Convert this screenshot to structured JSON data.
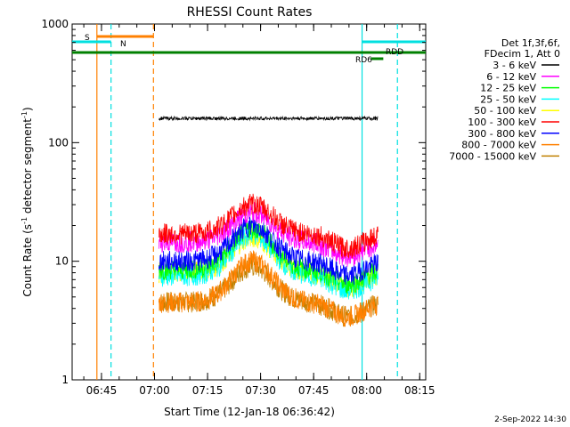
{
  "chart_data": {
    "type": "line",
    "title": "RHESSI Count Rates",
    "xlabel": "Start Time (12-Jan-18 06:36:42)",
    "ylabel_main": "Count Rate (s",
    "ylabel_sup1": "-1",
    "ylabel_mid": " detector segment",
    "ylabel_sup2": "-1",
    "ylabel_end": ")",
    "y_scale": "log",
    "ylim": [
      1,
      1000
    ],
    "xlim_minutes": [
      0,
      100
    ],
    "x_ticks": [
      {
        "label": "06:45",
        "minute": 8.3
      },
      {
        "label": "07:00",
        "minute": 23.3
      },
      {
        "label": "07:15",
        "minute": 38.3
      },
      {
        "label": "07:30",
        "minute": 53.3
      },
      {
        "label": "07:45",
        "minute": 68.3
      },
      {
        "label": "08:00",
        "minute": 83.3
      },
      {
        "label": "08:15",
        "minute": 98.3
      }
    ],
    "y_ticks": [
      {
        "label": "1",
        "value": 1
      },
      {
        "label": "10",
        "value": 10
      },
      {
        "label": "100",
        "value": 100
      },
      {
        "label": "1000",
        "value": 1000
      }
    ],
    "legend_header": [
      "Det 1f,3f,6f,",
      "FDecim 1, Att 0"
    ],
    "series": [
      {
        "name": "3 - 6 keV",
        "color": "#000000",
        "base": 160,
        "bump": 0.0
      },
      {
        "name": "6 - 12 keV",
        "color": "#ff00ff",
        "base": 14.5,
        "bump": 0.25
      },
      {
        "name": "12 - 25 keV",
        "color": "#00ff00",
        "base": 8.5,
        "bump": 0.35
      },
      {
        "name": "25 - 50 keV",
        "color": "#00ffff",
        "base": 7.5,
        "bump": 0.35
      },
      {
        "name": "50 - 100 keV",
        "color": "#ffff00",
        "base": 8.0,
        "bump": 0.3
      },
      {
        "name": "100 - 300 keV",
        "color": "#ff0000",
        "base": 17,
        "bump": 0.25
      },
      {
        "name": "300 - 800 keV",
        "color": "#0000ff",
        "base": 10,
        "bump": 0.3
      },
      {
        "name": "800 - 7000 keV",
        "color": "#ff8000",
        "base": 4.5,
        "bump": 0.35
      },
      {
        "name": "7000 - 15000 keV",
        "color": "#c08000",
        "base": 4.5,
        "bump": 0.3
      }
    ],
    "data_start_minute": 24.5,
    "data_end_minute": 86.5,
    "markers": {
      "S_label": "S",
      "N_label": "N",
      "RD6_label": "RD6",
      "RDD_label": "RDD"
    },
    "vertical_lines": [
      {
        "minute": 7.0,
        "color": "#ff8000",
        "style": "solid"
      },
      {
        "minute": 11.0,
        "color": "#00e0e0",
        "style": "dashed"
      },
      {
        "minute": 23.0,
        "color": "#ff8000",
        "style": "dashed"
      },
      {
        "minute": 82.0,
        "color": "#00e0e0",
        "style": "solid"
      },
      {
        "minute": 92.0,
        "color": "#00e0e0",
        "style": "dashed"
      }
    ]
  },
  "footer": {
    "date": "2-Sep-2022 14:30"
  },
  "colors": {
    "green_bar": "#008000",
    "cyan": "#00e0e0",
    "orange": "#ff8000"
  }
}
